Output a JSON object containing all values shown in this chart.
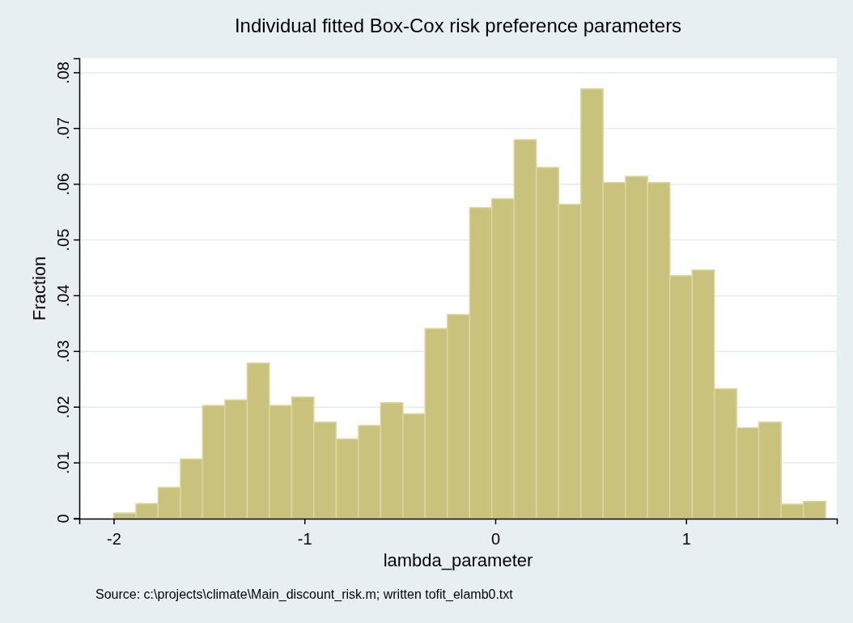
{
  "chart_data": {
    "type": "histogram",
    "title": "Individual fitted Box-Cox risk preference parameters",
    "xlabel": "lambda_parameter",
    "ylabel": "Fraction",
    "annotations": [
      "Source: c:\\projects\\climate\\Main_discount_risk.m; written tofit_elamb0.txt"
    ],
    "bins": [
      -2,
      -1.883,
      -1.767,
      -1.65,
      -1.534,
      -1.417,
      -1.3,
      -1.184,
      -1.067,
      -0.951,
      -0.834,
      -0.717,
      -0.601,
      -0.484,
      -0.368,
      -0.251,
      -0.134,
      -0.018,
      0.099,
      0.215,
      0.332,
      0.449,
      0.565,
      0.682,
      0.798,
      0.915,
      1.032,
      1.148,
      1.265,
      1.381,
      1.498,
      1.615,
      1.731
    ],
    "values": [
      0.001,
      0.0027,
      0.0056,
      0.0107,
      0.0203,
      0.0213,
      0.0279,
      0.0203,
      0.0218,
      0.0173,
      0.0143,
      0.0167,
      0.0208,
      0.0188,
      0.0341,
      0.0366,
      0.0558,
      0.0574,
      0.068,
      0.063,
      0.0564,
      0.0771,
      0.0603,
      0.0614,
      0.0603,
      0.0436,
      0.0446,
      0.0233,
      0.0163,
      0.0173,
      0.0026,
      0.0031
    ],
    "color": "#c9c27d",
    "xlim": [
      -2.18,
      1.79
    ],
    "xticks": [
      -2,
      -1,
      0,
      1
    ],
    "ylim": [
      0,
      0.0826
    ],
    "yticks": [
      0,
      {
        "value": 0.01,
        "label": ".01"
      },
      {
        "value": 0.02,
        "label": ".02"
      },
      {
        "value": 0.03,
        "label": ".03"
      },
      {
        "value": 0.04,
        "label": ".04"
      },
      {
        "value": 0.05,
        "label": ".05"
      },
      {
        "value": 0.06,
        "label": ".06"
      },
      {
        "value": 0.07,
        "label": ".07"
      },
      {
        "value": 0.08,
        "label": ".08"
      }
    ],
    "grid": "y"
  }
}
